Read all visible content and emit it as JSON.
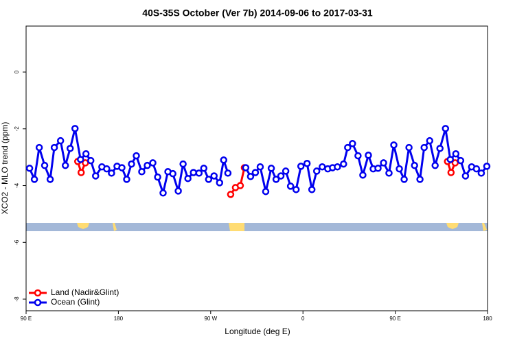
{
  "chart_data": {
    "type": "line",
    "title": "40S-35S October (Ver 7b)   2014-09-06 to 2017-03-31",
    "xlabel": "Longitude (deg E)",
    "ylabel": "XCO2 - MLO trend (ppm)",
    "xlim": [
      90,
      540
    ],
    "ylim": [
      -8.41,
      1.62
    ],
    "xticks": [
      {
        "value": 90,
        "label": "90 E"
      },
      {
        "value": 180,
        "label": "180"
      },
      {
        "value": 270,
        "label": "90 W"
      },
      {
        "value": 360,
        "label": "0"
      },
      {
        "value": 450,
        "label": "90 E"
      },
      {
        "value": 540,
        "label": "180"
      }
    ],
    "yticks": [
      0,
      -2,
      -4,
      -6,
      -8
    ],
    "legend": "bottom-left",
    "series": [
      {
        "name": "Land (Nadir&Glint)",
        "color": "#ff0000",
        "x": [
          140.4,
          143.7,
          147.8,
          null,
          289.5,
          294.2,
          298.9,
          302.9,
          null,
          501.0,
          504.4,
          508.4
        ],
        "values": [
          -3.15,
          -3.54,
          -3.2,
          null,
          -4.31,
          -4.07,
          -4.0,
          -3.37,
          null,
          -3.15,
          -3.54,
          -3.2
        ]
      },
      {
        "name": "Ocean (Glint)",
        "color": "#0000ee",
        "x": [
          93.4,
          98.1,
          102.8,
          108.1,
          113.5,
          117.5,
          123.6,
          128.3,
          133.0,
          137.7,
          143.1,
          148.4,
          153.1,
          157.8,
          163.9,
          168.6,
          173.3,
          178.7,
          183.4,
          188.1,
          192.8,
          197.5,
          202.8,
          208.2,
          213.6,
          218.3,
          223.6,
          228.3,
          233.1,
          238.4,
          243.1,
          247.8,
          253.2,
          258.6,
          263.3,
          268.0,
          273.3,
          278.7,
          282.7,
          286.8,
          null,
          304.2,
          308.9,
          313.6,
          318.3,
          323.7,
          329.1,
          333.8,
          338.5,
          343.2,
          347.9,
          353.3,
          358.0,
          364.0,
          368.7,
          373.4,
          378.8,
          384.2,
          388.9,
          393.6,
          399.6,
          403.6,
          408.3,
          413.7,
          418.4,
          423.8,
          428.5,
          433.2,
          438.6,
          443.9,
          448.6,
          454.0,
          458.7,
          463.4,
          468.8,
          474.1,
          478.2,
          483.6,
          488.9,
          493.6,
          499.0,
          503.7,
          509.1,
          513.8,
          518.5,
          524.5,
          529.2,
          533.9,
          539.3
        ],
        "values": [
          -3.39,
          -3.78,
          -2.66,
          -3.29,
          -3.78,
          -2.66,
          -2.42,
          -3.29,
          -2.69,
          -1.99,
          -3.08,
          -2.88,
          -3.12,
          -3.66,
          -3.34,
          -3.41,
          -3.56,
          -3.32,
          -3.37,
          -3.78,
          -3.24,
          -2.95,
          -3.51,
          -3.29,
          -3.2,
          -3.7,
          -4.26,
          -3.51,
          -3.58,
          -4.19,
          -3.24,
          -3.75,
          -3.54,
          -3.56,
          -3.39,
          -3.78,
          -3.66,
          -3.9,
          -3.1,
          -3.56,
          null,
          -3.37,
          -3.68,
          -3.54,
          -3.34,
          -4.21,
          -3.39,
          -3.78,
          -3.66,
          -3.49,
          -4.02,
          -4.14,
          -3.32,
          -3.22,
          -4.14,
          -3.49,
          -3.34,
          -3.41,
          -3.37,
          -3.34,
          -3.24,
          -2.66,
          -2.52,
          -2.95,
          -3.63,
          -2.93,
          -3.41,
          -3.39,
          -3.2,
          -3.56,
          -2.57,
          -3.41,
          -3.78,
          -2.66,
          -3.29,
          -3.78,
          -2.66,
          -2.42,
          -3.29,
          -2.69,
          -1.99,
          -3.08,
          -2.88,
          -3.12,
          -3.66,
          -3.34,
          -3.41,
          -3.56,
          -3.32
        ]
      }
    ]
  }
}
